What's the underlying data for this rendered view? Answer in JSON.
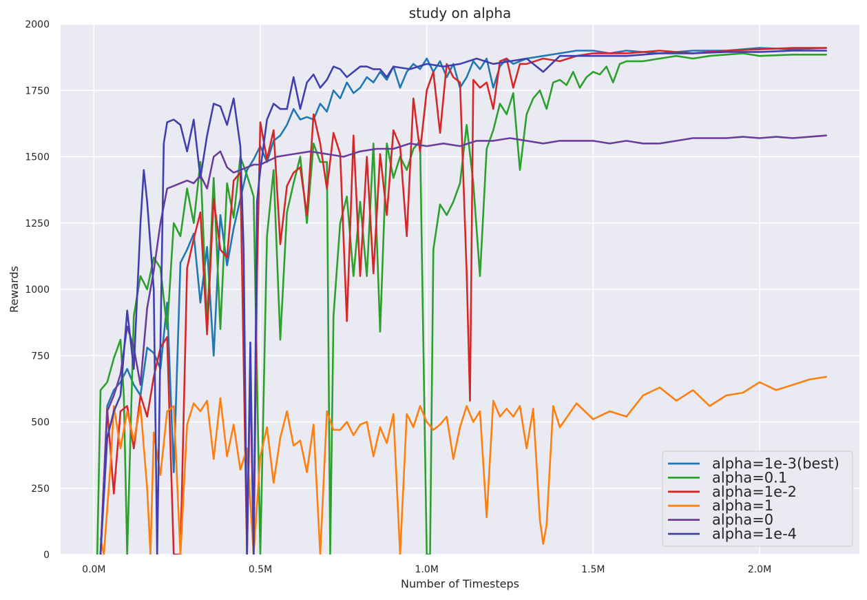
{
  "chart_data": {
    "type": "line",
    "title": "study on alpha",
    "xlabel": "Number of Timesteps",
    "ylabel": "Rewards",
    "xlim": [
      -0.1,
      2.3
    ],
    "ylim": [
      0,
      2000
    ],
    "xticks": [
      0.0,
      0.5,
      1.0,
      1.5,
      2.0
    ],
    "xtick_labels": [
      "0.0M",
      "0.5M",
      "1.0M",
      "1.5M",
      "2.0M"
    ],
    "yticks": [
      0,
      250,
      500,
      750,
      1000,
      1250,
      1500,
      1750,
      2000
    ],
    "ytick_labels": [
      "0",
      "250",
      "500",
      "750",
      "1000",
      "1250",
      "1500",
      "1750",
      "2000"
    ],
    "grid": true,
    "legend_position": "lower right",
    "colors": {
      "background": "#eaeaf2",
      "grid": "#ffffff"
    },
    "series": [
      {
        "name": "alpha=1e-3(best)",
        "color": "#1f77b4",
        "x": [
          0.02,
          0.04,
          0.06,
          0.08,
          0.1,
          0.12,
          0.14,
          0.16,
          0.18,
          0.2,
          0.22,
          0.24,
          0.26,
          0.28,
          0.3,
          0.32,
          0.34,
          0.36,
          0.38,
          0.4,
          0.42,
          0.44,
          0.46,
          0.48,
          0.5,
          0.52,
          0.54,
          0.56,
          0.58,
          0.6,
          0.62,
          0.64,
          0.66,
          0.68,
          0.7,
          0.72,
          0.74,
          0.76,
          0.78,
          0.8,
          0.82,
          0.84,
          0.86,
          0.88,
          0.9,
          0.92,
          0.94,
          0.96,
          0.98,
          1.0,
          1.02,
          1.04,
          1.06,
          1.08,
          1.1,
          1.12,
          1.14,
          1.16,
          1.18,
          1.2,
          1.22,
          1.24,
          1.26,
          1.28,
          1.3,
          1.35,
          1.4,
          1.45,
          1.5,
          1.55,
          1.6,
          1.7,
          1.8,
          1.9,
          2.0,
          2.1,
          2.2
        ],
        "values": [
          0,
          560,
          620,
          650,
          700,
          640,
          600,
          780,
          760,
          700,
          950,
          310,
          1100,
          1150,
          1210,
          950,
          1160,
          750,
          1280,
          1090,
          1230,
          1340,
          1450,
          1490,
          1540,
          1480,
          1560,
          1580,
          1620,
          1680,
          1640,
          1650,
          1640,
          1700,
          1670,
          1750,
          1720,
          1780,
          1740,
          1760,
          1800,
          1780,
          1820,
          1790,
          1840,
          1760,
          1820,
          1850,
          1830,
          1870,
          1820,
          1860,
          1800,
          1850,
          1760,
          1800,
          1860,
          1830,
          1870,
          1760,
          1840,
          1870,
          1850,
          1860,
          1870,
          1880,
          1890,
          1900,
          1900,
          1890,
          1900,
          1890,
          1900,
          1900,
          1910,
          1905,
          1910
        ]
      },
      {
        "name": "alpha=0.1",
        "color": "#2ca02c",
        "x": [
          0.01,
          0.02,
          0.04,
          0.06,
          0.08,
          0.09,
          0.1,
          0.12,
          0.14,
          0.16,
          0.18,
          0.2,
          0.22,
          0.24,
          0.26,
          0.28,
          0.3,
          0.32,
          0.34,
          0.36,
          0.38,
          0.4,
          0.42,
          0.44,
          0.46,
          0.48,
          0.5,
          0.52,
          0.54,
          0.56,
          0.58,
          0.6,
          0.62,
          0.64,
          0.66,
          0.68,
          0.7,
          0.71,
          0.72,
          0.74,
          0.76,
          0.78,
          0.8,
          0.82,
          0.84,
          0.86,
          0.88,
          0.9,
          0.92,
          0.94,
          0.96,
          0.98,
          1.0,
          1.01,
          1.02,
          1.04,
          1.06,
          1.08,
          1.1,
          1.12,
          1.14,
          1.16,
          1.18,
          1.2,
          1.22,
          1.24,
          1.26,
          1.28,
          1.3,
          1.32,
          1.34,
          1.36,
          1.38,
          1.4,
          1.42,
          1.44,
          1.46,
          1.48,
          1.5,
          1.52,
          1.54,
          1.56,
          1.58,
          1.6,
          1.65,
          1.7,
          1.75,
          1.8,
          1.85,
          1.9,
          1.95,
          2.0,
          2.1,
          2.2
        ],
        "values": [
          0,
          620,
          650,
          740,
          810,
          600,
          0,
          900,
          1050,
          1000,
          1120,
          1080,
          850,
          1250,
          1200,
          1380,
          1250,
          1480,
          870,
          1420,
          850,
          1400,
          1270,
          1500,
          1430,
          1350,
          0,
          1200,
          1450,
          810,
          1290,
          1400,
          1500,
          1250,
          1550,
          1480,
          1480,
          0,
          900,
          1250,
          1350,
          1050,
          1330,
          1050,
          1550,
          840,
          1550,
          1420,
          1500,
          1450,
          1530,
          1560,
          0,
          0,
          1150,
          1320,
          1280,
          1330,
          1400,
          1620,
          1400,
          1050,
          1530,
          1600,
          1700,
          1660,
          1740,
          1450,
          1660,
          1720,
          1750,
          1680,
          1780,
          1790,
          1770,
          1820,
          1760,
          1800,
          1820,
          1810,
          1840,
          1780,
          1850,
          1860,
          1860,
          1870,
          1880,
          1870,
          1880,
          1885,
          1890,
          1880,
          1885,
          1885
        ]
      },
      {
        "name": "alpha=1e-2",
        "color": "#d62728",
        "x": [
          0.02,
          0.04,
          0.06,
          0.08,
          0.1,
          0.12,
          0.14,
          0.16,
          0.18,
          0.2,
          0.22,
          0.24,
          0.26,
          0.28,
          0.3,
          0.32,
          0.34,
          0.36,
          0.38,
          0.4,
          0.42,
          0.44,
          0.46,
          0.47,
          0.48,
          0.49,
          0.5,
          0.52,
          0.54,
          0.56,
          0.58,
          0.6,
          0.62,
          0.64,
          0.66,
          0.68,
          0.7,
          0.72,
          0.74,
          0.76,
          0.78,
          0.8,
          0.82,
          0.84,
          0.86,
          0.88,
          0.9,
          0.92,
          0.94,
          0.96,
          0.98,
          1.0,
          1.02,
          1.04,
          1.06,
          1.08,
          1.1,
          1.12,
          1.13,
          1.14,
          1.16,
          1.18,
          1.2,
          1.22,
          1.24,
          1.26,
          1.28,
          1.3,
          1.35,
          1.4,
          1.45,
          1.5,
          1.6,
          1.7,
          1.8,
          1.9,
          2.0,
          2.1,
          2.2
        ],
        "values": [
          0,
          550,
          230,
          540,
          560,
          400,
          600,
          520,
          670,
          780,
          820,
          0,
          0,
          1080,
          1190,
          1290,
          830,
          1340,
          1150,
          1120,
          1410,
          1440,
          0,
          700,
          0,
          1060,
          1630,
          1490,
          1600,
          1170,
          1390,
          1440,
          1460,
          1280,
          1660,
          1550,
          1380,
          1590,
          1510,
          880,
          1580,
          1050,
          1500,
          1060,
          1510,
          1280,
          1600,
          1540,
          1200,
          1720,
          1520,
          1750,
          1820,
          1590,
          1850,
          1800,
          1780,
          1060,
          580,
          1790,
          1760,
          1780,
          1680,
          1860,
          1870,
          1760,
          1850,
          1850,
          1870,
          1860,
          1880,
          1890,
          1890,
          1900,
          1890,
          1900,
          1905,
          1910,
          1910
        ]
      },
      {
        "name": "alpha=1",
        "color": "#ff7f0e",
        "x": [
          0.02,
          0.03,
          0.05,
          0.06,
          0.08,
          0.1,
          0.12,
          0.14,
          0.16,
          0.17,
          0.18,
          0.2,
          0.22,
          0.24,
          0.26,
          0.28,
          0.3,
          0.32,
          0.34,
          0.36,
          0.38,
          0.4,
          0.42,
          0.44,
          0.46,
          0.48,
          0.5,
          0.52,
          0.54,
          0.56,
          0.58,
          0.6,
          0.62,
          0.64,
          0.66,
          0.68,
          0.7,
          0.72,
          0.74,
          0.76,
          0.78,
          0.8,
          0.82,
          0.84,
          0.86,
          0.88,
          0.9,
          0.92,
          0.94,
          0.96,
          0.98,
          1.0,
          1.02,
          1.04,
          1.06,
          1.08,
          1.1,
          1.12,
          1.14,
          1.16,
          1.18,
          1.2,
          1.22,
          1.24,
          1.26,
          1.28,
          1.3,
          1.32,
          1.34,
          1.35,
          1.36,
          1.38,
          1.4,
          1.45,
          1.5,
          1.55,
          1.6,
          1.65,
          1.7,
          1.75,
          1.8,
          1.85,
          1.9,
          1.95,
          2.0,
          2.05,
          2.1,
          2.15,
          2.2
        ],
        "values": [
          60,
          0,
          340,
          560,
          400,
          540,
          430,
          560,
          250,
          0,
          460,
          300,
          540,
          560,
          0,
          490,
          570,
          540,
          580,
          360,
          590,
          370,
          490,
          320,
          400,
          0,
          370,
          480,
          270,
          440,
          540,
          410,
          430,
          310,
          490,
          0,
          540,
          470,
          470,
          500,
          450,
          490,
          500,
          370,
          480,
          420,
          530,
          0,
          530,
          480,
          560,
          500,
          470,
          490,
          520,
          360,
          480,
          560,
          500,
          540,
          140,
          580,
          520,
          550,
          520,
          560,
          400,
          550,
          130,
          40,
          110,
          560,
          480,
          570,
          510,
          540,
          520,
          600,
          630,
          580,
          620,
          560,
          600,
          610,
          650,
          620,
          640,
          660,
          670
        ]
      },
      {
        "name": "alpha=0",
        "color": "#6a3d9a",
        "x": [
          0.02,
          0.04,
          0.06,
          0.08,
          0.1,
          0.12,
          0.14,
          0.16,
          0.18,
          0.2,
          0.22,
          0.24,
          0.26,
          0.28,
          0.3,
          0.32,
          0.34,
          0.36,
          0.38,
          0.4,
          0.42,
          0.44,
          0.46,
          0.48,
          0.5,
          0.55,
          0.6,
          0.65,
          0.7,
          0.75,
          0.8,
          0.85,
          0.9,
          0.95,
          1.0,
          1.05,
          1.1,
          1.15,
          1.2,
          1.25,
          1.3,
          1.35,
          1.4,
          1.45,
          1.5,
          1.55,
          1.6,
          1.65,
          1.7,
          1.75,
          1.8,
          1.85,
          1.9,
          1.95,
          2.0,
          2.05,
          2.1,
          2.15,
          2.2
        ],
        "values": [
          0,
          540,
          600,
          680,
          860,
          780,
          640,
          930,
          1070,
          1250,
          1380,
          1390,
          1400,
          1410,
          1400,
          1430,
          1380,
          1500,
          1520,
          1460,
          1440,
          1450,
          1460,
          1470,
          1470,
          1500,
          1510,
          1520,
          1510,
          1500,
          1520,
          1530,
          1530,
          1550,
          1540,
          1550,
          1540,
          1560,
          1560,
          1570,
          1560,
          1550,
          1560,
          1560,
          1560,
          1550,
          1560,
          1550,
          1550,
          1560,
          1570,
          1570,
          1570,
          1575,
          1570,
          1575,
          1570,
          1575,
          1580
        ]
      },
      {
        "name": "alpha=1e-4",
        "color": "#3f3faf",
        "x": [
          0.02,
          0.04,
          0.06,
          0.08,
          0.1,
          0.12,
          0.14,
          0.15,
          0.16,
          0.18,
          0.19,
          0.2,
          0.21,
          0.22,
          0.24,
          0.26,
          0.28,
          0.3,
          0.32,
          0.34,
          0.36,
          0.38,
          0.4,
          0.42,
          0.44,
          0.45,
          0.46,
          0.47,
          0.48,
          0.49,
          0.5,
          0.52,
          0.54,
          0.56,
          0.58,
          0.6,
          0.62,
          0.64,
          0.66,
          0.68,
          0.7,
          0.72,
          0.74,
          0.76,
          0.78,
          0.8,
          0.82,
          0.84,
          0.86,
          0.88,
          0.9,
          0.95,
          1.0,
          1.05,
          1.1,
          1.15,
          1.2,
          1.25,
          1.3,
          1.35,
          1.4,
          1.5,
          1.6,
          1.7,
          1.8,
          1.9,
          2.0,
          2.1,
          2.2
        ],
        "values": [
          0,
          440,
          540,
          600,
          920,
          700,
          1250,
          1450,
          1330,
          1000,
          0,
          800,
          1550,
          1630,
          1640,
          1620,
          1520,
          1640,
          1420,
          1580,
          1700,
          1690,
          1620,
          1720,
          1540,
          1150,
          0,
          800,
          0,
          1330,
          1450,
          1640,
          1700,
          1680,
          1680,
          1800,
          1680,
          1780,
          1810,
          1760,
          1790,
          1840,
          1830,
          1800,
          1820,
          1840,
          1840,
          1830,
          1830,
          1800,
          1840,
          1830,
          1850,
          1840,
          1850,
          1870,
          1850,
          1860,
          1870,
          1820,
          1880,
          1880,
          1880,
          1890,
          1890,
          1895,
          1895,
          1900,
          1900
        ]
      }
    ]
  }
}
